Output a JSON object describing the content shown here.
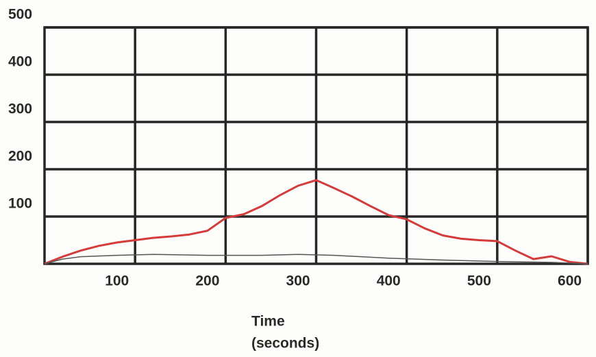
{
  "chart_data": {
    "type": "line",
    "x_label_lines": [
      "Time",
      "(seconds)"
    ],
    "xlim": [
      20,
      620
    ],
    "xticks": [
      100,
      200,
      300,
      400,
      500,
      600
    ],
    "xgrid": [
      120,
      220,
      320,
      420,
      520,
      620
    ],
    "ylim": [
      0,
      500
    ],
    "yticks": [
      100,
      200,
      300,
      400,
      500
    ],
    "grid": true,
    "series": [
      {
        "name": null,
        "color": "#d63b3b",
        "width": 3,
        "x": [
          20,
          40,
          60,
          80,
          100,
          120,
          140,
          160,
          180,
          200,
          220,
          240,
          260,
          280,
          300,
          320,
          340,
          360,
          380,
          400,
          420,
          440,
          460,
          480,
          500,
          520,
          540,
          560,
          580,
          600,
          620
        ],
        "values": [
          0,
          15,
          28,
          38,
          45,
          50,
          55,
          58,
          62,
          70,
          97,
          105,
          122,
          145,
          165,
          177,
          160,
          142,
          122,
          103,
          94,
          75,
          60,
          53,
          50,
          48,
          28,
          10,
          16,
          4,
          0
        ]
      },
      {
        "name": null,
        "color": "#555555",
        "width": 1.5,
        "x": [
          20,
          40,
          60,
          100,
          140,
          200,
          260,
          300,
          340,
          400,
          460,
          520,
          580,
          620
        ],
        "values": [
          0,
          10,
          15,
          18,
          20,
          18,
          18,
          20,
          18,
          12,
          8,
          5,
          3,
          0
        ]
      }
    ]
  }
}
